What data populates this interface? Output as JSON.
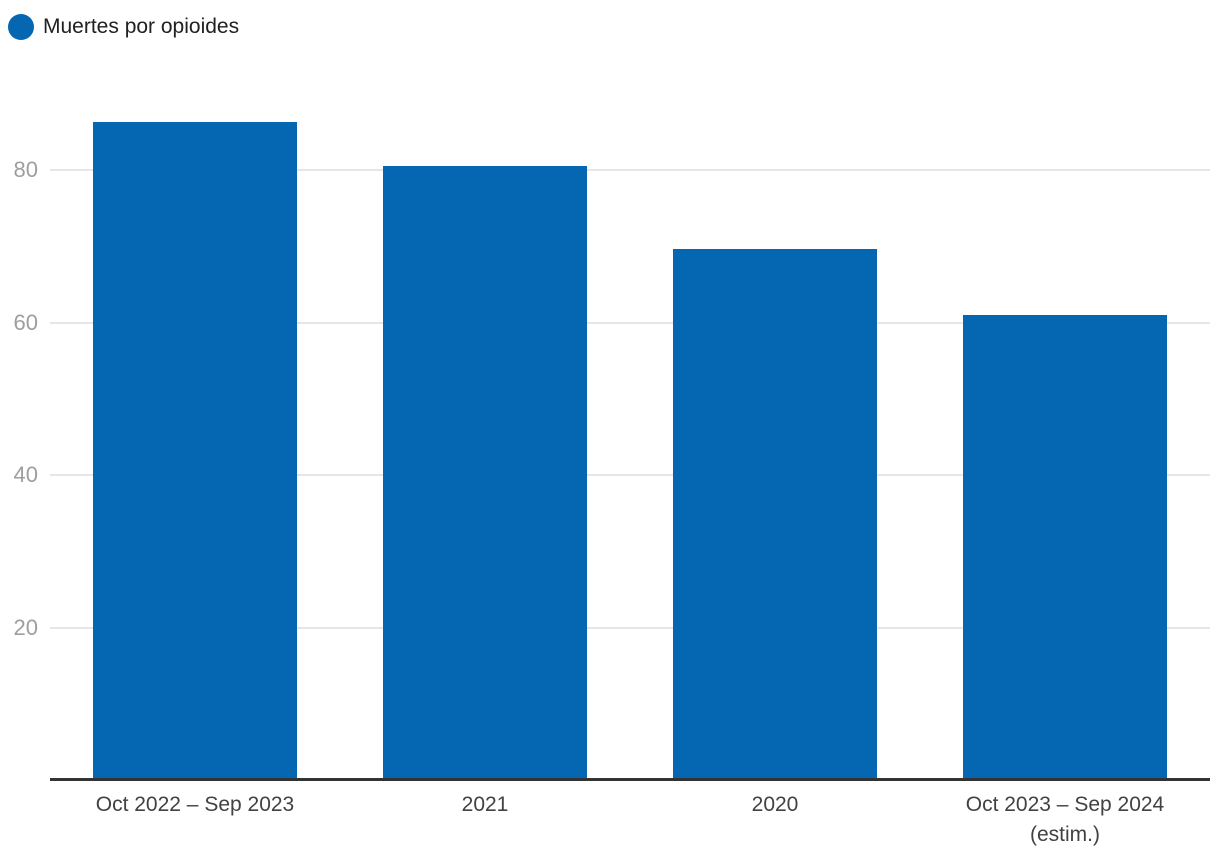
{
  "chart_data": {
    "type": "bar",
    "title": "",
    "xlabel": "",
    "ylabel": "",
    "categories": [
      "Oct 2022 – Sep 2023",
      "2021",
      "2020",
      "Oct 2023 – Sep 2024\n(estim.)"
    ],
    "series": [
      {
        "name": "Muertes por opioides",
        "color": "#0567b1",
        "values": [
          86.3,
          80.5,
          69.7,
          61.0
        ]
      }
    ],
    "ylim": [
      0,
      90.5
    ],
    "yticks": [
      20,
      40,
      60,
      80
    ],
    "grid": true,
    "legend_position": "top-left"
  },
  "colors": {
    "bar": "#0567b1",
    "grid": "#e6e6e6",
    "axis": "#333333",
    "ytick_text": "#9e9e9e",
    "xtick_text": "#424242",
    "legend_text": "#212121",
    "background": "#ffffff"
  }
}
